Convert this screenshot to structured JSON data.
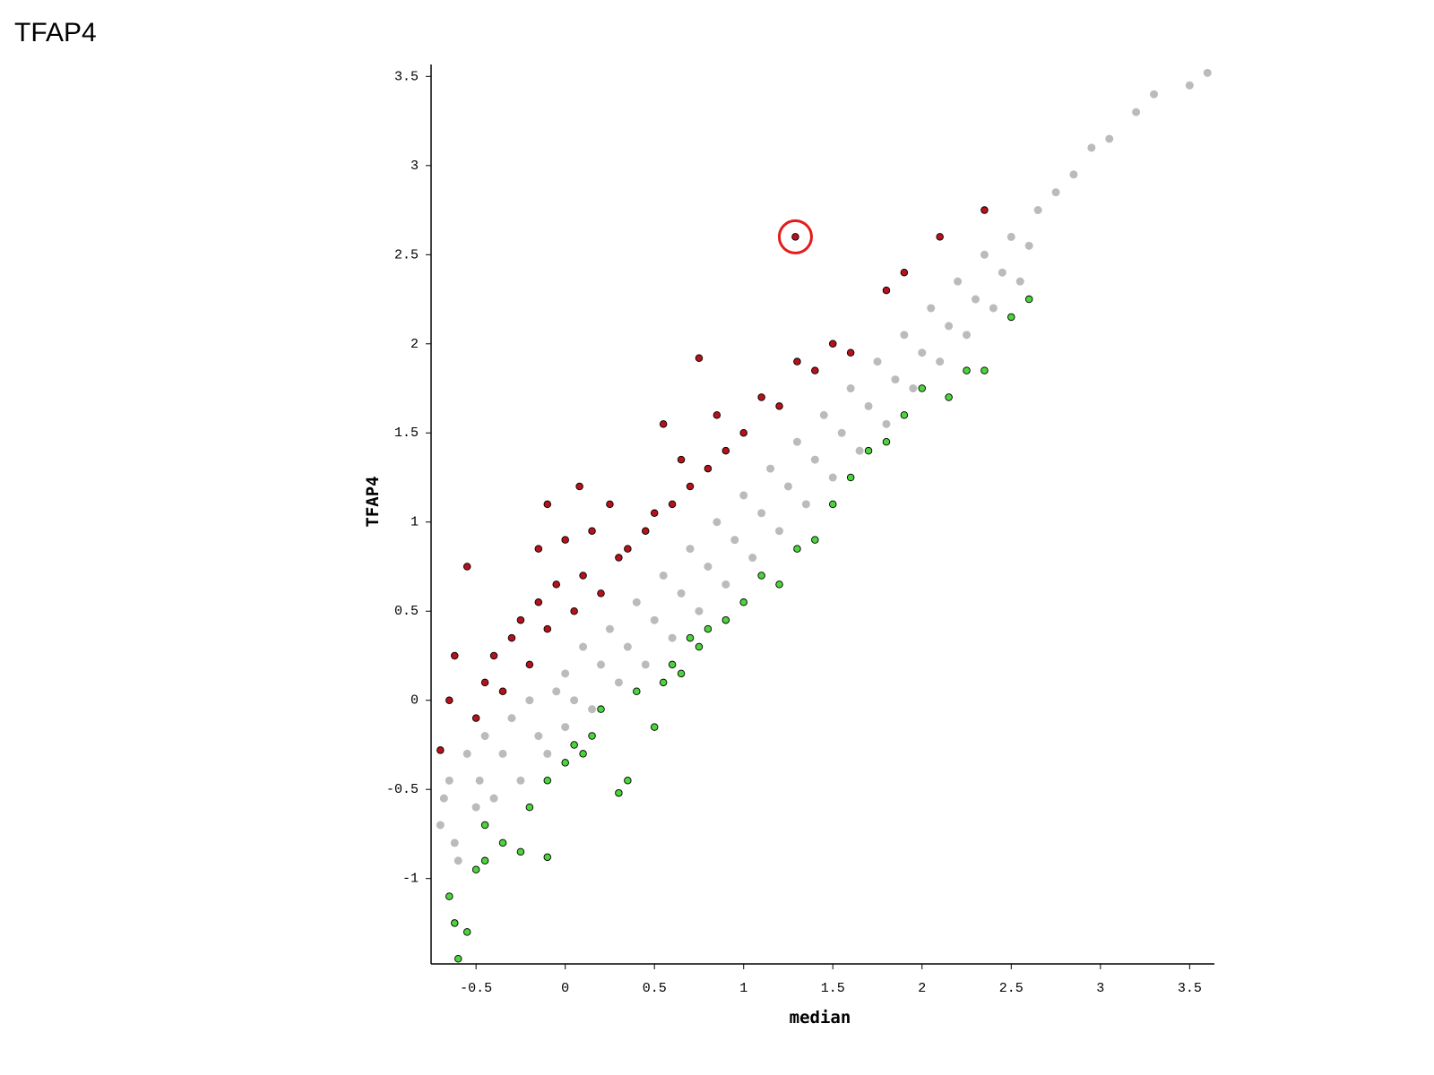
{
  "page_title": "TFAP4",
  "chart_data": {
    "type": "scatter",
    "x_label": "median",
    "y_label": "TFAP4",
    "xlim": [
      -0.752,
      3.639
    ],
    "ylim": [
      -1.479,
      3.567
    ],
    "xticks": [
      -0.5,
      0,
      0.5,
      1,
      1.5,
      2,
      2.5,
      3,
      3.5
    ],
    "yticks": [
      -1,
      -0.5,
      0,
      0.5,
      1,
      1.5,
      2,
      2.5,
      3,
      3.5
    ],
    "highlight_ring_color": "#e31b1b",
    "series": [
      {
        "color": "#bbbbbb",
        "outline": false,
        "points": [
          [
            -0.7,
            -0.7
          ],
          [
            -0.68,
            -0.55
          ],
          [
            -0.65,
            -0.45
          ],
          [
            -0.62,
            -0.8
          ],
          [
            -0.6,
            -0.9
          ],
          [
            -0.55,
            -0.3
          ],
          [
            -0.5,
            -0.6
          ],
          [
            -0.48,
            -0.45
          ],
          [
            -0.45,
            -0.2
          ],
          [
            -0.4,
            -0.55
          ],
          [
            -0.35,
            -0.3
          ],
          [
            -0.3,
            -0.1
          ],
          [
            -0.25,
            -0.45
          ],
          [
            -0.2,
            0.0
          ],
          [
            -0.15,
            -0.2
          ],
          [
            -0.1,
            -0.3
          ],
          [
            -0.05,
            0.05
          ],
          [
            0,
            0.15
          ],
          [
            0,
            -0.15
          ],
          [
            0.05,
            0.0
          ],
          [
            0.1,
            0.3
          ],
          [
            0.15,
            -0.05
          ],
          [
            0.2,
            0.2
          ],
          [
            0.25,
            0.4
          ],
          [
            0.3,
            0.1
          ],
          [
            0.35,
            0.3
          ],
          [
            0.4,
            0.55
          ],
          [
            0.45,
            0.2
          ],
          [
            0.5,
            0.45
          ],
          [
            0.55,
            0.7
          ],
          [
            0.6,
            0.35
          ],
          [
            0.65,
            0.6
          ],
          [
            0.7,
            0.85
          ],
          [
            0.75,
            0.5
          ],
          [
            0.8,
            0.75
          ],
          [
            0.85,
            1.0
          ],
          [
            0.9,
            0.65
          ],
          [
            0.95,
            0.9
          ],
          [
            1.0,
            1.15
          ],
          [
            1.05,
            0.8
          ],
          [
            1.1,
            1.05
          ],
          [
            1.15,
            1.3
          ],
          [
            1.2,
            0.95
          ],
          [
            1.25,
            1.2
          ],
          [
            1.3,
            1.45
          ],
          [
            1.35,
            1.1
          ],
          [
            1.4,
            1.35
          ],
          [
            1.45,
            1.6
          ],
          [
            1.5,
            1.25
          ],
          [
            1.55,
            1.5
          ],
          [
            1.6,
            1.75
          ],
          [
            1.65,
            1.4
          ],
          [
            1.7,
            1.65
          ],
          [
            1.75,
            1.9
          ],
          [
            1.8,
            1.55
          ],
          [
            1.85,
            1.8
          ],
          [
            1.9,
            2.05
          ],
          [
            1.95,
            1.75
          ],
          [
            2.0,
            1.95
          ],
          [
            2.05,
            2.2
          ],
          [
            2.1,
            1.9
          ],
          [
            2.15,
            2.1
          ],
          [
            2.2,
            2.35
          ],
          [
            2.25,
            2.05
          ],
          [
            2.3,
            2.25
          ],
          [
            2.35,
            2.5
          ],
          [
            2.4,
            2.2
          ],
          [
            2.45,
            2.4
          ],
          [
            2.5,
            2.6
          ],
          [
            2.55,
            2.35
          ],
          [
            2.6,
            2.55
          ],
          [
            2.65,
            2.75
          ],
          [
            2.75,
            2.85
          ],
          [
            2.85,
            2.95
          ],
          [
            2.95,
            3.1
          ],
          [
            3.05,
            3.15
          ],
          [
            3.2,
            3.3
          ],
          [
            3.3,
            3.4
          ],
          [
            3.5,
            3.45
          ],
          [
            3.6,
            3.52
          ]
        ]
      },
      {
        "color": "#b5121b",
        "outline": true,
        "highlight_index": 46,
        "points": [
          [
            -0.7,
            -0.28
          ],
          [
            -0.65,
            0.0
          ],
          [
            -0.62,
            0.25
          ],
          [
            -0.55,
            0.75
          ],
          [
            -0.5,
            -0.1
          ],
          [
            -0.45,
            0.1
          ],
          [
            -0.4,
            0.25
          ],
          [
            -0.35,
            0.05
          ],
          [
            -0.3,
            0.35
          ],
          [
            -0.25,
            0.45
          ],
          [
            -0.2,
            0.2
          ],
          [
            -0.15,
            0.55
          ],
          [
            -0.1,
            0.4
          ],
          [
            -0.05,
            0.65
          ],
          [
            0,
            0.9
          ],
          [
            0.05,
            0.5
          ],
          [
            0.1,
            0.7
          ],
          [
            0.15,
            0.95
          ],
          [
            0.2,
            0.6
          ],
          [
            0.25,
            1.1
          ],
          [
            0.3,
            0.8
          ],
          [
            0.35,
            0.85
          ],
          [
            0.45,
            0.95
          ],
          [
            0.5,
            1.05
          ],
          [
            0.55,
            1.55
          ],
          [
            0.6,
            1.1
          ],
          [
            0.65,
            1.35
          ],
          [
            0.7,
            1.2
          ],
          [
            0.75,
            1.92
          ],
          [
            0.8,
            1.3
          ],
          [
            0.85,
            1.6
          ],
          [
            0.9,
            1.4
          ],
          [
            1.0,
            1.5
          ],
          [
            1.1,
            1.7
          ],
          [
            1.2,
            1.65
          ],
          [
            1.3,
            1.9
          ],
          [
            1.4,
            1.85
          ],
          [
            1.5,
            2.0
          ],
          [
            1.6,
            1.95
          ],
          [
            1.8,
            2.3
          ],
          [
            1.9,
            2.4
          ],
          [
            2.1,
            2.6
          ],
          [
            2.35,
            2.75
          ],
          [
            -0.1,
            1.1
          ],
          [
            0.08,
            1.2
          ],
          [
            -0.15,
            0.85
          ],
          [
            1.29,
            2.6
          ]
        ]
      },
      {
        "color": "#4bd43b",
        "outline": true,
        "points": [
          [
            -0.65,
            -1.1
          ],
          [
            -0.62,
            -1.25
          ],
          [
            -0.6,
            -1.45
          ],
          [
            -0.55,
            -1.3
          ],
          [
            -0.5,
            -0.95
          ],
          [
            -0.45,
            -0.9
          ],
          [
            -0.35,
            -0.8
          ],
          [
            -0.25,
            -0.85
          ],
          [
            -0.2,
            -0.6
          ],
          [
            -0.1,
            -0.88
          ],
          [
            -0.1,
            -0.45
          ],
          [
            0,
            -0.35
          ],
          [
            0.05,
            -0.25
          ],
          [
            0.15,
            -0.2
          ],
          [
            0.2,
            -0.05
          ],
          [
            0.3,
            -0.52
          ],
          [
            0.35,
            -0.45
          ],
          [
            0.4,
            0.05
          ],
          [
            0.5,
            -0.15
          ],
          [
            0.55,
            0.1
          ],
          [
            0.6,
            0.2
          ],
          [
            0.65,
            0.15
          ],
          [
            0.75,
            0.3
          ],
          [
            0.8,
            0.4
          ],
          [
            0.9,
            0.45
          ],
          [
            1.0,
            0.55
          ],
          [
            1.1,
            0.7
          ],
          [
            1.2,
            0.65
          ],
          [
            1.3,
            0.85
          ],
          [
            1.4,
            0.9
          ],
          [
            1.5,
            1.1
          ],
          [
            1.6,
            1.25
          ],
          [
            1.7,
            1.4
          ],
          [
            1.8,
            1.45
          ],
          [
            1.9,
            1.6
          ],
          [
            2.0,
            1.75
          ],
          [
            2.15,
            1.7
          ],
          [
            2.25,
            1.85
          ],
          [
            2.35,
            1.85
          ],
          [
            2.5,
            2.15
          ],
          [
            2.6,
            2.25
          ],
          [
            -0.45,
            -0.7
          ],
          [
            0.1,
            -0.3
          ],
          [
            0.7,
            0.35
          ]
        ]
      }
    ]
  }
}
